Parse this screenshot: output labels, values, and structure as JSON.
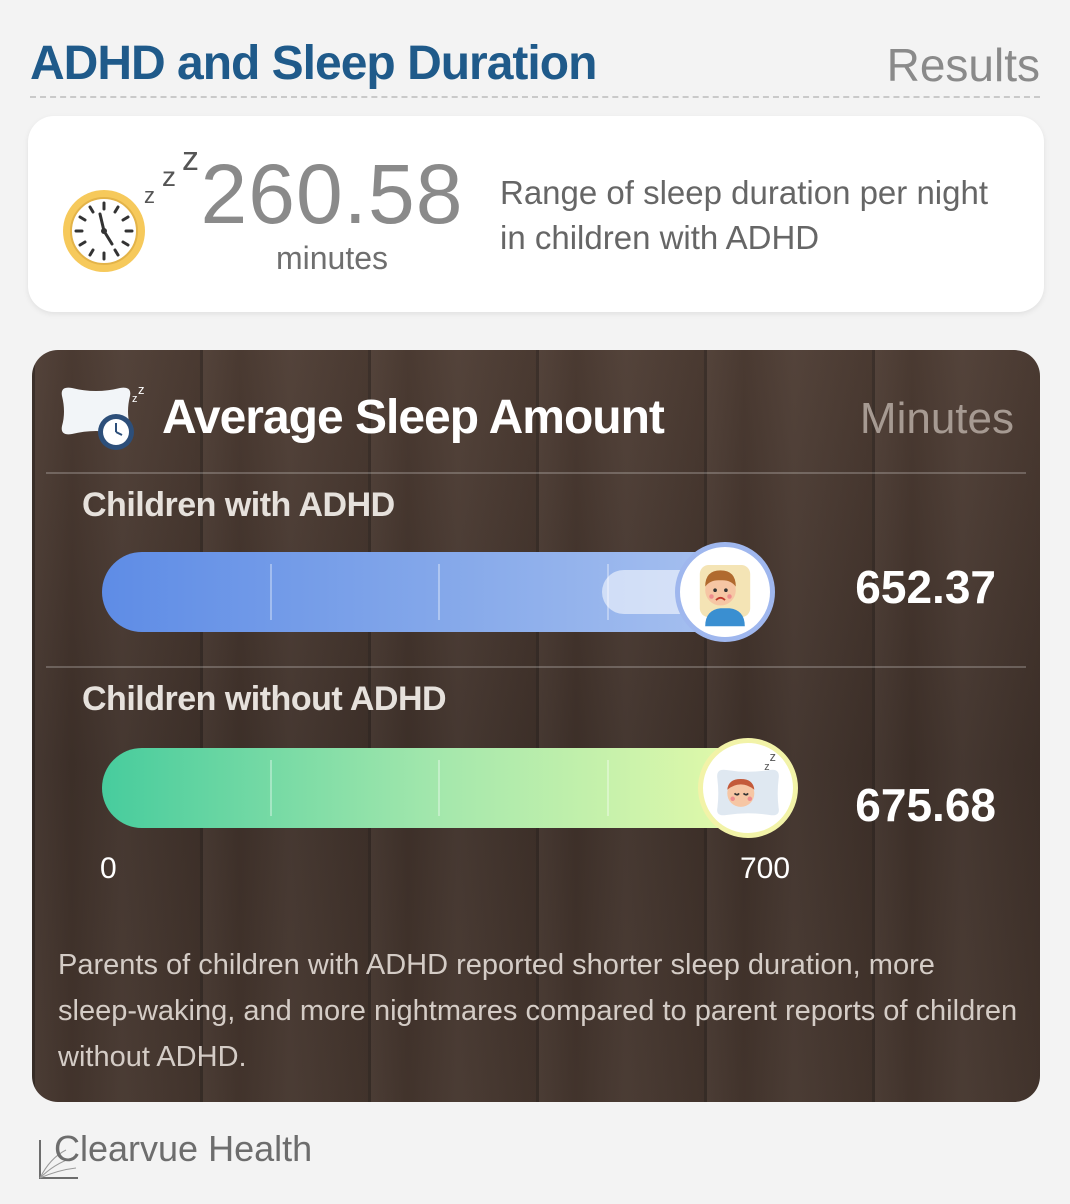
{
  "header": {
    "title": "ADHD and Sleep Duration",
    "right_label": "Results"
  },
  "stat": {
    "value": "260.58",
    "unit": "minutes",
    "description": "Range of sleep duration per night in children with ADHD",
    "icon": "alarm-clock-sleep-icon"
  },
  "panel": {
    "icon": "pillow-clock-icon",
    "title": "Average Sleep Amount",
    "unit_label": "Minutes",
    "note": "Parents of children with ADHD reported shorter sleep duration, more sleep-waking, and more nightmares compared to parent reports of children without ADHD."
  },
  "chart_data": {
    "type": "bar",
    "orientation": "horizontal",
    "title": "Average Sleep Amount",
    "xlabel": "Minutes",
    "xlim": [
      0,
      700
    ],
    "axis_ticks": [
      "0",
      "700"
    ],
    "categories": [
      "Children with ADHD",
      "Children without ADHD"
    ],
    "values": [
      652.37,
      675.68
    ],
    "value_labels": [
      "652.37",
      "675.68"
    ],
    "bar_colors": [
      "#5e8ce6",
      "#47cc9d"
    ],
    "badge_icons": [
      "sad-child-icon",
      "sleeping-child-icon"
    ]
  },
  "footer": {
    "brand": "Clearvue Health"
  }
}
